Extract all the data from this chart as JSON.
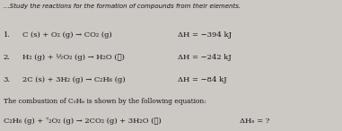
{
  "bg_color": "#ccc8c4",
  "lines": [
    {
      "num": "1.",
      "equation": "C (s) + O₂ (g) → CO₂ (g)",
      "delta_h": "ΔH = −394 kJ"
    },
    {
      "num": "2.",
      "equation": "H₂ (g) + ½O₂ (g) → H₂O (ℓ)",
      "delta_h": "ΔH = −242 kJ"
    },
    {
      "num": "3.",
      "equation": "2C (s) + 3H₂ (g) → C₂H₆ (g)",
      "delta_h": "ΔH = −84 kJ"
    }
  ],
  "separator_text": "The combustion of C₂H₆ is shown by the following equation:",
  "combustion_eq": "C₂H₆ (g) + ⁷₂O₂ (g) → 2CO₂ (g) + 3H₂O (ℓ)",
  "combustion_dh": "ΔHₑ = ?",
  "eq_fontsize": 6.0,
  "sep_fontsize": 5.4,
  "text_color": "#111111",
  "title_partial": "...Study the reactions for the formation of compounds from their elements.",
  "title_fontsize": 5.0
}
